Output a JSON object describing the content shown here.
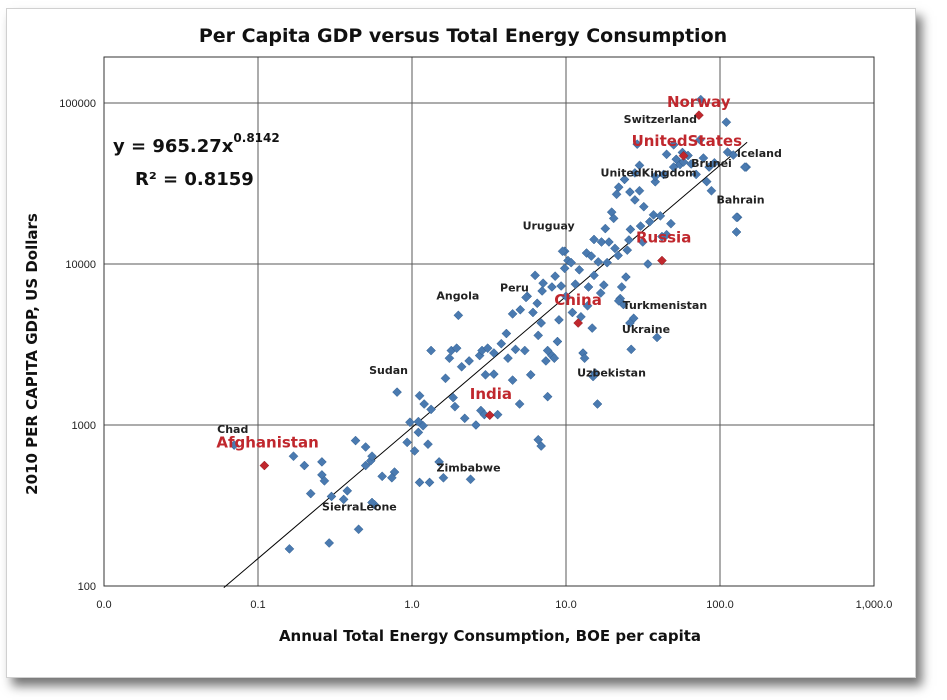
{
  "chart_data": {
    "type": "scatter",
    "title": "Per Capita GDP versus Total Energy Consumption",
    "xlabel": "Annual Total Energy Consumption, BOE per capita",
    "ylabel": "2010 PER CAPITA GDP, US Dollars",
    "x_scale": "log",
    "y_scale": "log",
    "xlim": [
      0.01,
      1000
    ],
    "ylim": [
      100,
      200000
    ],
    "x_ticks": [
      "0.0",
      "0.1",
      "1.0",
      "10.0",
      "100.0",
      "1,000.0"
    ],
    "y_ticks": [
      "100",
      "1000",
      "10000",
      "100000"
    ],
    "grid": true,
    "equation": {
      "base": "y = 965.27x",
      "exponent": "0.8142",
      "r2": "R² = 0.8159"
    },
    "trendline": {
      "coef": 965.27,
      "exponent": 0.8142,
      "x_range": [
        0.06,
        150
      ]
    },
    "colors": {
      "point": "#4a7ab0",
      "highlight": "#c0272d",
      "trend": "#000000"
    },
    "highlighted": [
      {
        "name": "Norway",
        "x": 73,
        "y": 84000
      },
      {
        "name": "UnitedStates",
        "x": 58,
        "y": 47000
      },
      {
        "name": "Russia",
        "x": 42,
        "y": 10500
      },
      {
        "name": "China",
        "x": 12,
        "y": 4300
      },
      {
        "name": "India",
        "x": 3.2,
        "y": 1150
      },
      {
        "name": "Afghanistan",
        "x": 0.11,
        "y": 560
      }
    ],
    "annotations": [
      {
        "name": "Switzerland",
        "x": 50,
        "y": 55000
      },
      {
        "name": "Iceland",
        "x": 145,
        "y": 40000
      },
      {
        "name": "UnitedKingdom",
        "x": 43,
        "y": 36000
      },
      {
        "name": "Brunei",
        "x": 85,
        "y": 40000
      },
      {
        "name": "Bahrain",
        "x": 128,
        "y": 19500
      },
      {
        "name": "Uruguay",
        "x": 9.5,
        "y": 12000
      },
      {
        "name": "Angola",
        "x": 2.0,
        "y": 4800
      },
      {
        "name": "Peru",
        "x": 5.5,
        "y": 6200
      },
      {
        "name": "Turkmenistan",
        "x": 22,
        "y": 5900
      },
      {
        "name": "Ukraine",
        "x": 26,
        "y": 4300
      },
      {
        "name": "Sudan",
        "x": 0.8,
        "y": 1600
      },
      {
        "name": "Uzbekistan",
        "x": 15,
        "y": 2000
      },
      {
        "name": "Chad",
        "x": 0.07,
        "y": 750
      },
      {
        "name": "Zimbabwe",
        "x": 2.4,
        "y": 460
      },
      {
        "name": "SierraLeone",
        "x": 0.55,
        "y": 330
      }
    ],
    "points": [
      [
        0.16,
        170
      ],
      [
        0.29,
        185
      ],
      [
        0.36,
        345
      ],
      [
        0.45,
        225
      ],
      [
        0.57,
        320
      ],
      [
        0.38,
        390
      ],
      [
        0.22,
        375
      ],
      [
        0.26,
        490
      ],
      [
        0.3,
        360
      ],
      [
        0.17,
        640
      ],
      [
        0.2,
        560
      ],
      [
        0.26,
        590
      ],
      [
        0.27,
        450
      ],
      [
        0.43,
        800
      ],
      [
        0.5,
        730
      ],
      [
        0.5,
        560
      ],
      [
        0.54,
        600
      ],
      [
        0.55,
        640
      ],
      [
        0.64,
        480
      ],
      [
        0.77,
        510
      ],
      [
        0.74,
        470
      ],
      [
        0.93,
        780
      ],
      [
        0.97,
        1040
      ],
      [
        1.1,
        900
      ],
      [
        1.18,
        990
      ],
      [
        1.04,
        690
      ],
      [
        1.27,
        760
      ],
      [
        1.5,
        590
      ],
      [
        1.12,
        440
      ],
      [
        1.3,
        440
      ],
      [
        1.6,
        470
      ],
      [
        1.9,
        1300
      ],
      [
        1.85,
        1480
      ],
      [
        2.2,
        1100
      ],
      [
        2.6,
        1000
      ],
      [
        2.8,
        1230
      ],
      [
        2.95,
        1160
      ],
      [
        3.6,
        1160
      ],
      [
        3.0,
        2050
      ],
      [
        3.4,
        2070
      ],
      [
        4.5,
        1900
      ],
      [
        5.0,
        1350
      ],
      [
        5.9,
        2050
      ],
      [
        6.6,
        810
      ],
      [
        6.9,
        740
      ],
      [
        7.6,
        1500
      ],
      [
        4.7,
        2950
      ],
      [
        5.4,
        2900
      ],
      [
        1.12,
        1520
      ],
      [
        1.1,
        1050
      ],
      [
        1.2,
        1350
      ],
      [
        1.33,
        1250
      ],
      [
        1.33,
        2900
      ],
      [
        1.65,
        1950
      ],
      [
        1.75,
        2600
      ],
      [
        1.8,
        2900
      ],
      [
        1.95,
        3000
      ],
      [
        2.1,
        2300
      ],
      [
        2.35,
        2500
      ],
      [
        2.75,
        2700
      ],
      [
        2.85,
        2900
      ],
      [
        3.1,
        3000
      ],
      [
        3.4,
        2800
      ],
      [
        4.1,
        3700
      ],
      [
        4.5,
        4900
      ],
      [
        5.05,
        5200
      ],
      [
        5.6,
        6300
      ],
      [
        6.1,
        5000
      ],
      [
        6.3,
        8500
      ],
      [
        6.6,
        3600
      ],
      [
        6.9,
        4300
      ],
      [
        7.1,
        7600
      ],
      [
        7.4,
        2500
      ],
      [
        7.6,
        2900
      ],
      [
        8.1,
        2700
      ],
      [
        8.4,
        2600
      ],
      [
        8.8,
        3300
      ],
      [
        8.1,
        7200
      ],
      [
        9.0,
        4500
      ],
      [
        9.3,
        7300
      ],
      [
        9.8,
        9400
      ],
      [
        9.8,
        12000
      ],
      [
        10.3,
        10500
      ],
      [
        10.8,
        10200
      ],
      [
        11.5,
        7500
      ],
      [
        12.2,
        9200
      ],
      [
        12.9,
        2800
      ],
      [
        13.2,
        2600
      ],
      [
        13.8,
        5500
      ],
      [
        14.8,
        4000
      ],
      [
        15.2,
        8500
      ],
      [
        15.5,
        2100
      ],
      [
        16.0,
        1350
      ],
      [
        16.8,
        6600
      ],
      [
        17.6,
        7400
      ],
      [
        18.5,
        10200
      ],
      [
        13.6,
        11700
      ],
      [
        14.6,
        11200
      ],
      [
        15.2,
        14200
      ],
      [
        16.2,
        10300
      ],
      [
        17.0,
        13700
      ],
      [
        18.0,
        16600
      ],
      [
        19.0,
        13700
      ],
      [
        19.8,
        21000
      ],
      [
        20.8,
        12500
      ],
      [
        21.8,
        11300
      ],
      [
        22.5,
        6100
      ],
      [
        23.0,
        7200
      ],
      [
        23.6,
        5600
      ],
      [
        24.5,
        8300
      ],
      [
        25.0,
        12200
      ],
      [
        25.6,
        14100
      ],
      [
        26.2,
        16400
      ],
      [
        26.5,
        2950
      ],
      [
        27.5,
        4600
      ],
      [
        20.4,
        19200
      ],
      [
        21.3,
        27100
      ],
      [
        22.0,
        30000
      ],
      [
        24.0,
        33500
      ],
      [
        26.0,
        28000
      ],
      [
        28.0,
        25000
      ],
      [
        28.0,
        36800
      ],
      [
        30.0,
        41000
      ],
      [
        30.0,
        28500
      ],
      [
        29.0,
        55500
      ],
      [
        32.0,
        22700
      ],
      [
        30.5,
        17200
      ],
      [
        31.5,
        13700
      ],
      [
        35.0,
        18300
      ],
      [
        34.0,
        10000
      ],
      [
        37.0,
        20200
      ],
      [
        38.0,
        32400
      ],
      [
        39.0,
        3500
      ],
      [
        41.0,
        19900
      ],
      [
        42.0,
        14800
      ],
      [
        45.0,
        15200
      ],
      [
        48.0,
        17800
      ],
      [
        50.0,
        40000
      ],
      [
        52.0,
        44700
      ],
      [
        55.0,
        41500
      ],
      [
        57.0,
        49300
      ],
      [
        62.0,
        47200
      ],
      [
        65.0,
        41800
      ],
      [
        70.0,
        36000
      ],
      [
        74.0,
        59000
      ],
      [
        78.0,
        45500
      ],
      [
        82.0,
        32500
      ],
      [
        88.0,
        28500
      ],
      [
        92.0,
        42500
      ],
      [
        110.0,
        76000
      ],
      [
        112.0,
        49500
      ],
      [
        122.0,
        47500
      ],
      [
        128.0,
        15800
      ],
      [
        130.0,
        19500
      ],
      [
        148.0,
        40000
      ],
      [
        75.0,
        105000
      ],
      [
        38.0,
        35000
      ],
      [
        45.0,
        48000
      ],
      [
        58.0,
        43000
      ],
      [
        6.5,
        5700
      ],
      [
        10.0,
        6300
      ],
      [
        12.5,
        4700
      ],
      [
        8.5,
        8400
      ],
      [
        14.0,
        7200
      ],
      [
        11.0,
        5000
      ],
      [
        7.0,
        6800
      ],
      [
        3.8,
        3200
      ],
      [
        4.2,
        2600
      ]
    ]
  }
}
